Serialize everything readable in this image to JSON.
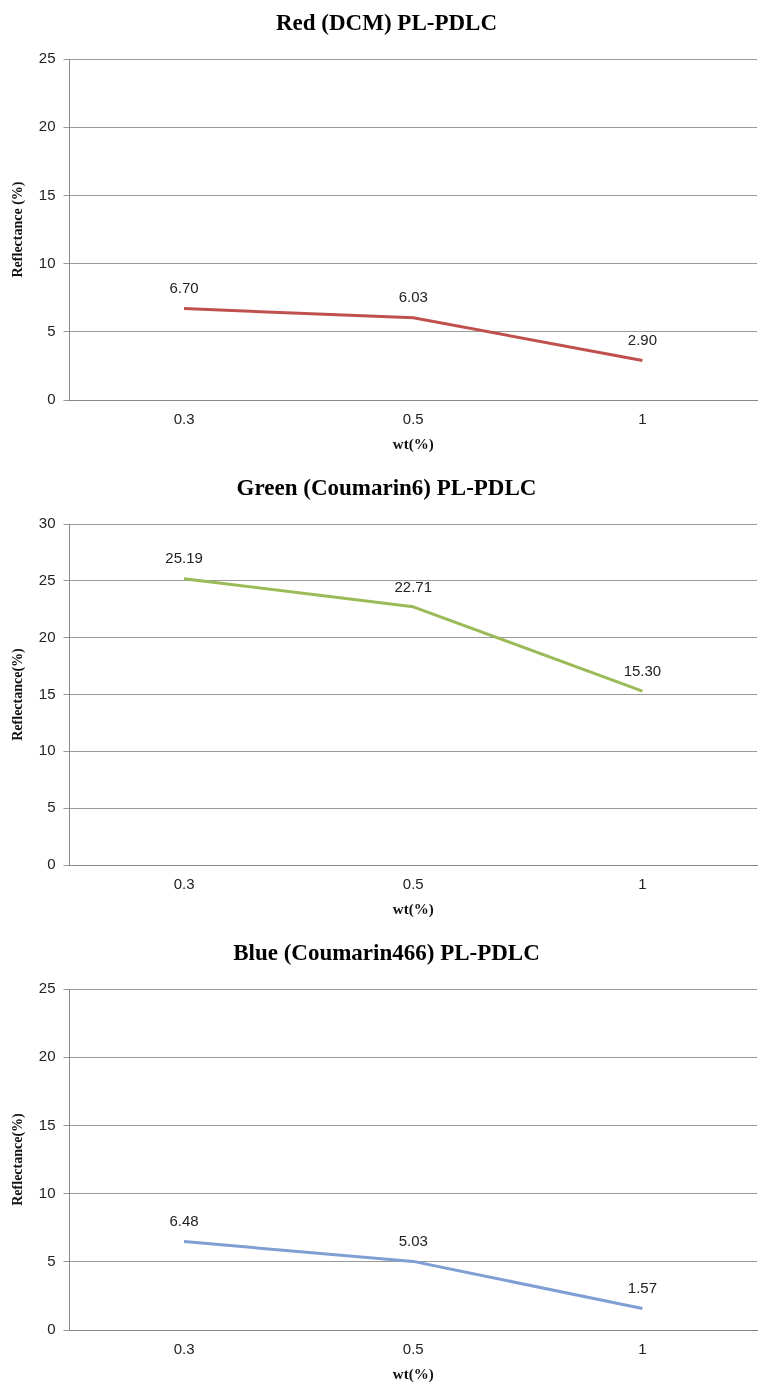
{
  "chart_data": [
    {
      "type": "line",
      "title": "Red (DCM) PL-PDLC",
      "xlabel": "wt(%)",
      "ylabel": "Reflectance (%)",
      "categories": [
        "0.3",
        "0.5",
        "1"
      ],
      "series": [
        {
          "color": "#c0504d",
          "values": [
            6.7,
            6.03,
            2.9
          ],
          "value_labels": [
            "6.70",
            "6.03",
            "2.90"
          ]
        }
      ],
      "ylim": [
        0,
        25
      ],
      "yticks": [
        0,
        5,
        10,
        15,
        20,
        25
      ],
      "grid": "y",
      "marker": "none"
    },
    {
      "type": "line",
      "title": "Green (Coumarin6) PL-PDLC",
      "xlabel": "wt(%)",
      "ylabel": "Reflectance(%)",
      "categories": [
        "0.3",
        "0.5",
        "1"
      ],
      "series": [
        {
          "color": "#9bbb59",
          "values": [
            25.19,
            22.71,
            15.3
          ],
          "value_labels": [
            "25.19",
            "22.71",
            "15.30"
          ]
        }
      ],
      "ylim": [
        0,
        30
      ],
      "yticks": [
        0,
        5,
        10,
        15,
        20,
        25,
        30
      ],
      "grid": "y",
      "marker": "none"
    },
    {
      "type": "line",
      "title": "Blue (Coumarin466) PL-PDLC",
      "xlabel": "wt(%)",
      "ylabel": "Reflectance(%)",
      "categories": [
        "0.3",
        "0.5",
        "1"
      ],
      "series": [
        {
          "color": "#7f9fd4",
          "values": [
            6.48,
            5.03,
            1.57
          ],
          "value_labels": [
            "6.48",
            "5.03",
            "1.57"
          ]
        }
      ],
      "ylim": [
        0,
        25
      ],
      "yticks": [
        0,
        5,
        10,
        15,
        20,
        25
      ],
      "grid": "y",
      "marker": "none"
    }
  ]
}
